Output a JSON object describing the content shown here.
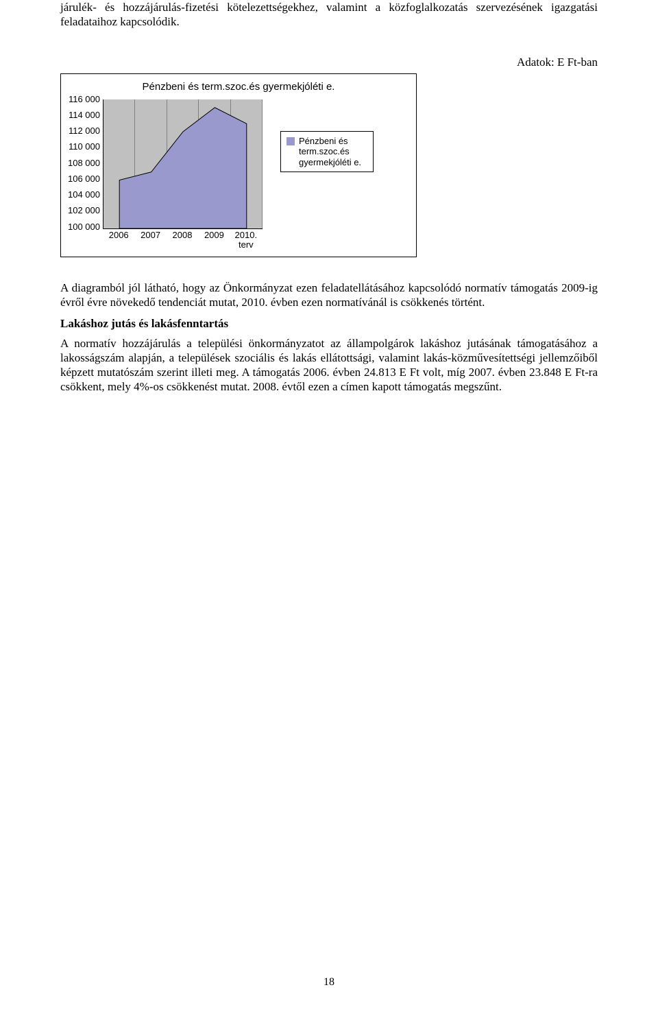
{
  "intro_paragraph": "járulék- és hozzájárulás-fizetési kötelezettségekhez, valamint a közfoglalkozatás szervezésének igazgatási feladataihoz kapcsolódik.",
  "units_label": "Adatok: E Ft-ban",
  "chart": {
    "type": "area",
    "title": "Pénzbeni és term.szoc.és gyermekjóléti e.",
    "categories": [
      "2006",
      "2007",
      "2008",
      "2009",
      "2010. terv"
    ],
    "values": [
      106000,
      107000,
      112000,
      115000,
      113000
    ],
    "ylim": [
      100000,
      116000
    ],
    "ytick_step": 2000,
    "yticks": [
      "116 000",
      "114 000",
      "112 000",
      "110 000",
      "108 000",
      "106 000",
      "104 000",
      "102 000",
      "100 000"
    ],
    "series_color": "#9999ce",
    "series_outline": "#000000",
    "plot_bg": "#c0c0c0",
    "frame_border": "#000000",
    "grid_v_color": "#808080",
    "label_fontsize": 13,
    "title_fontsize": 15,
    "legend_label": "Pénzbeni és term.szoc.és gyermekjóléti e.",
    "legend_swatch_color": "#9999ce"
  },
  "para_after_chart": "A diagramból jól látható, hogy az Önkormányzat ezen feladatellátásához kapcsolódó normatív támogatás 2009-ig évről évre növekedő tendenciát mutat, 2010. évben ezen normatívánál is csökkenés történt.",
  "section_heading": "Lakáshoz jutás és lakásfenntartás",
  "section_body": "A normatív hozzájárulás a települési önkormányzatot az állampolgárok lakáshoz jutásának támogatásához a lakosságszám alapján, a települések szociális és lakás ellátottsági, valamint lakás-közművesítettségi jellemzőiből képzett mutatószám szerint illeti meg. A támogatás 2006. évben 24.813 E Ft volt, míg 2007. évben 23.848 E Ft-ra csökkent, mely 4%-os csökkenést mutat. 2008. évtől ezen a címen kapott támogatás megszűnt.",
  "page_number": "18"
}
